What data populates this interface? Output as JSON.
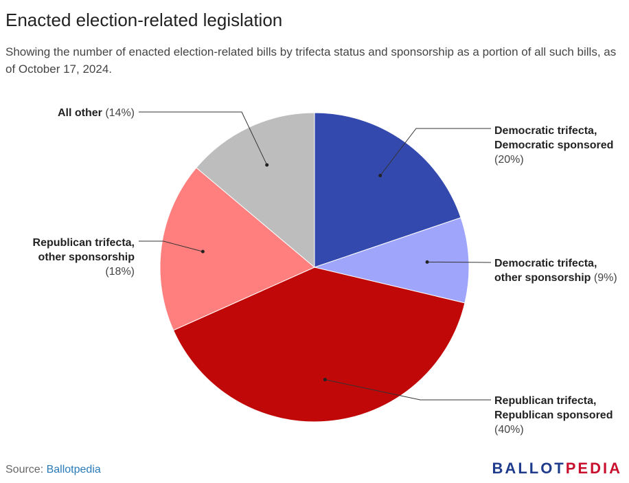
{
  "title": "Enacted election-related legislation",
  "subtitle": "Showing the number of enacted election-related bills by trifecta status and sponsorship as a portion of all such bills, as of October 17, 2024.",
  "chart_data": {
    "type": "pie",
    "title": "Enacted election-related legislation",
    "slices": [
      {
        "label": "Democratic trifecta, Democratic sponsored",
        "name_lines": [
          "Democratic trifecta,",
          "Democratic sponsored"
        ],
        "pct_text": "(20%)",
        "value": 20,
        "color": "#3449ae"
      },
      {
        "label": "Democratic trifecta, other sponsorship",
        "name_lines": [
          "Democratic trifecta,",
          "other sponsorship"
        ],
        "pct_text": "(9%)",
        "value": 9,
        "color": "#9ea5fb"
      },
      {
        "label": "Republican trifecta, Republican sponsored",
        "name_lines": [
          "Republican trifecta,",
          "Republican sponsored"
        ],
        "pct_text": "(40%)",
        "value": 40,
        "color": "#c00808"
      },
      {
        "label": "Republican trifecta, other sponsorship",
        "name_lines": [
          "Republican trifecta,",
          "other sponsorship"
        ],
        "pct_text": "(18%)",
        "value": 18,
        "color": "#ff7f7f"
      },
      {
        "label": "All other",
        "name_lines": [
          "All other"
        ],
        "pct_text": "(14%)",
        "value": 14,
        "color": "#bdbdbd"
      }
    ]
  },
  "footer": {
    "source_label": "Source:",
    "source_link": "Ballotpedia"
  },
  "brand": {
    "part1": "BALLOT",
    "part2": "PEDIA"
  }
}
